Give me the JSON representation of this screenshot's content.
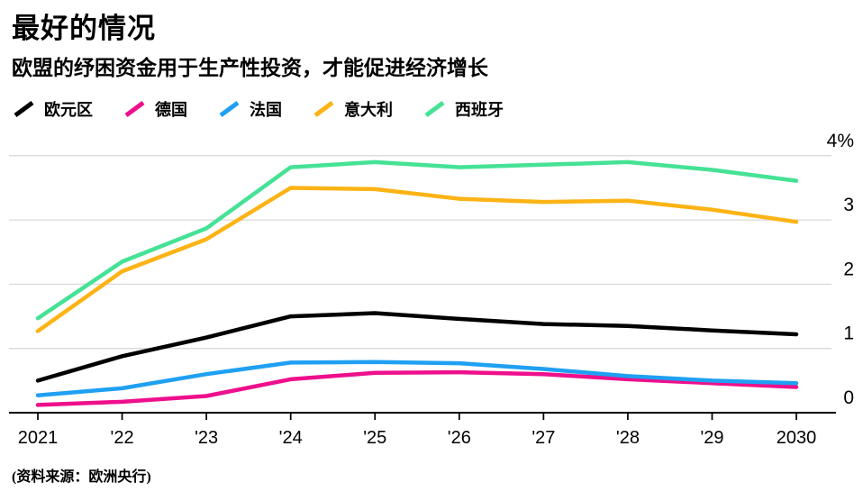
{
  "page": {
    "title": "最好的情况",
    "subtitle": "欧盟的纾困资金用于生产性投资，才能促进经济增长",
    "source": "(资料来源：欧洲央行)"
  },
  "chart_data": {
    "type": "line",
    "title": "最好的情况",
    "subtitle": "欧盟的纾困资金用于生产性投资，才能促进经济增长",
    "source": "(资料来源：欧洲央行)",
    "x": [
      2021,
      2022,
      2023,
      2024,
      2025,
      2026,
      2027,
      2028,
      2029,
      2030
    ],
    "x_tick_labels": [
      "2021",
      "'22",
      "'23",
      "'24",
      "'25",
      "'26",
      "'27",
      "'28",
      "'29",
      "2030"
    ],
    "y_unit": "%",
    "ylim": [
      0,
      4
    ],
    "y_ticks": [
      {
        "value": 4,
        "label": "4%"
      },
      {
        "value": 3,
        "label": "3"
      },
      {
        "value": 2,
        "label": "2"
      },
      {
        "value": 1,
        "label": "1"
      },
      {
        "value": 0,
        "label": "0"
      }
    ],
    "grid": "horizontal",
    "legend_position": "top",
    "colors": {
      "grid": "#d9d9d9",
      "axis": "#000000",
      "text": "#000000"
    },
    "series": [
      {
        "name": "欧元区",
        "color": "#000000",
        "values": [
          0.5,
          0.88,
          1.17,
          1.5,
          1.55,
          1.46,
          1.38,
          1.35,
          1.28,
          1.22
        ]
      },
      {
        "name": "德国",
        "color": "#ee0f8c",
        "values": [
          0.12,
          0.17,
          0.26,
          0.52,
          0.62,
          0.63,
          0.6,
          0.52,
          0.46,
          0.4
        ]
      },
      {
        "name": "法国",
        "color": "#1fa0f2",
        "values": [
          0.27,
          0.38,
          0.6,
          0.78,
          0.79,
          0.77,
          0.68,
          0.57,
          0.5,
          0.46
        ]
      },
      {
        "name": "意大利",
        "color": "#fcb315",
        "values": [
          1.27,
          2.2,
          2.7,
          3.5,
          3.48,
          3.33,
          3.28,
          3.3,
          3.16,
          2.97
        ]
      },
      {
        "name": "西班牙",
        "color": "#45e295",
        "values": [
          1.47,
          2.35,
          2.87,
          3.82,
          3.9,
          3.82,
          3.86,
          3.9,
          3.78,
          3.61
        ]
      }
    ]
  }
}
